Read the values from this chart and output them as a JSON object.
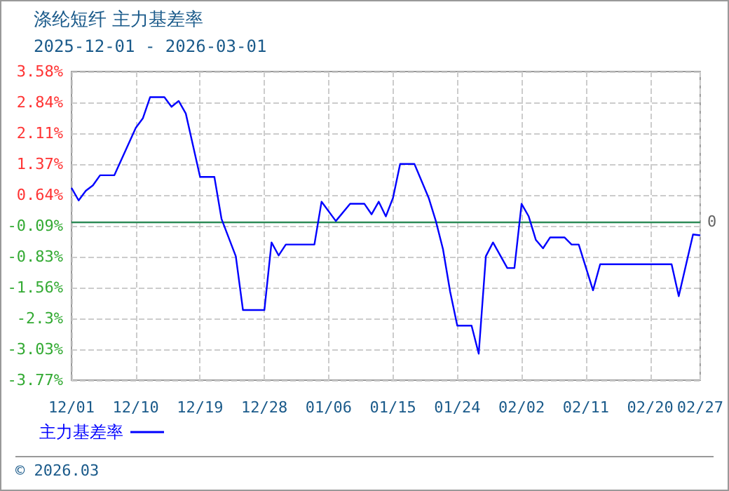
{
  "chart_data": {
    "type": "line",
    "title": "涤纶短纤 主力基差率",
    "subtitle": "2025-12-01 - 2026-03-01",
    "x": [
      "2025-12-01",
      "2025-12-02",
      "2025-12-03",
      "2025-12-04",
      "2025-12-05",
      "2025-12-07",
      "2025-12-10",
      "2025-12-11",
      "2025-12-12",
      "2025-12-14",
      "2025-12-15",
      "2025-12-16",
      "2025-12-17",
      "2025-12-19",
      "2025-12-21",
      "2025-12-22",
      "2025-12-24",
      "2025-12-25",
      "2025-12-28",
      "2025-12-29",
      "2025-12-30",
      "2025-12-31",
      "2026-01-04",
      "2026-01-05",
      "2026-01-07",
      "2026-01-09",
      "2026-01-11",
      "2026-01-12",
      "2026-01-13",
      "2026-01-14",
      "2026-01-15",
      "2026-01-16",
      "2026-01-18",
      "2026-01-20",
      "2026-01-21",
      "2026-01-22",
      "2026-01-23",
      "2026-01-24",
      "2026-01-26",
      "2026-01-27",
      "2026-01-28",
      "2026-01-29",
      "2026-01-31",
      "2026-02-01",
      "2026-02-02",
      "2026-02-03",
      "2026-02-04",
      "2026-02-05",
      "2026-02-06",
      "2026-02-08",
      "2026-02-09",
      "2026-02-10",
      "2026-02-12",
      "2026-02-13",
      "2026-02-23",
      "2026-02-24",
      "2026-02-26",
      "2026-02-27"
    ],
    "series": [
      {
        "name": "主力基差率",
        "color": "#0000ff",
        "values": [
          0.81,
          0.51,
          0.74,
          0.87,
          1.11,
          1.11,
          2.24,
          2.47,
          2.97,
          2.97,
          2.74,
          2.88,
          2.58,
          1.07,
          1.07,
          0.07,
          -0.82,
          -2.1,
          -2.1,
          -0.49,
          -0.8,
          -0.54,
          -0.54,
          0.48,
          0.02,
          0.43,
          0.43,
          0.18,
          0.48,
          0.13,
          0.57,
          1.38,
          1.38,
          0.57,
          0.02,
          -0.65,
          -1.66,
          -2.47,
          -2.47,
          -3.14,
          -0.82,
          -0.49,
          -1.1,
          -1.1,
          0.43,
          0.13,
          -0.43,
          -0.63,
          -0.37,
          -0.37,
          -0.54,
          -0.54,
          -1.63,
          -1.01,
          -1.01,
          -1.77,
          -0.3,
          -0.32
        ]
      }
    ],
    "xlim": [
      "2025-12-01",
      "2026-02-27"
    ],
    "xticks": [
      {
        "value": "2025-12-01",
        "label": "12/01"
      },
      {
        "value": "2025-12-10",
        "label": "12/10"
      },
      {
        "value": "2025-12-19",
        "label": "12/19"
      },
      {
        "value": "2025-12-28",
        "label": "12/28"
      },
      {
        "value": "2026-01-06",
        "label": "01/06"
      },
      {
        "value": "2026-01-15",
        "label": "01/15"
      },
      {
        "value": "2026-01-24",
        "label": "01/24"
      },
      {
        "value": "2026-02-02",
        "label": "02/02"
      },
      {
        "value": "2026-02-11",
        "label": "02/11"
      },
      {
        "value": "2026-02-20",
        "label": "02/20"
      },
      {
        "value": "2026-02-27",
        "label": "02/27"
      }
    ],
    "ylim": [
      -3.77,
      3.58
    ],
    "yticks": [
      {
        "value": -3.77,
        "label": "-3.77%"
      },
      {
        "value": -3.03,
        "label": "-3.03%"
      },
      {
        "value": -2.3,
        "label": "-2.3%"
      },
      {
        "value": -1.56,
        "label": "-1.56%"
      },
      {
        "value": -0.83,
        "label": "-0.83%"
      },
      {
        "value": -0.09,
        "label": "-0.09%"
      },
      {
        "value": 0.64,
        "label": "0.64%"
      },
      {
        "value": 1.37,
        "label": "1.37%"
      },
      {
        "value": 2.11,
        "label": "2.11%"
      },
      {
        "value": 2.84,
        "label": "2.84%"
      },
      {
        "value": 3.58,
        "label": "3.58%"
      }
    ],
    "ref_lines": [
      {
        "axis": "y",
        "value": 0,
        "label": "0",
        "color": "#2e8b57"
      }
    ],
    "annotations": [
      "© 2026.03"
    ],
    "grid": true,
    "legend": "bottom left",
    "marker": "none",
    "line_style": "solid"
  }
}
